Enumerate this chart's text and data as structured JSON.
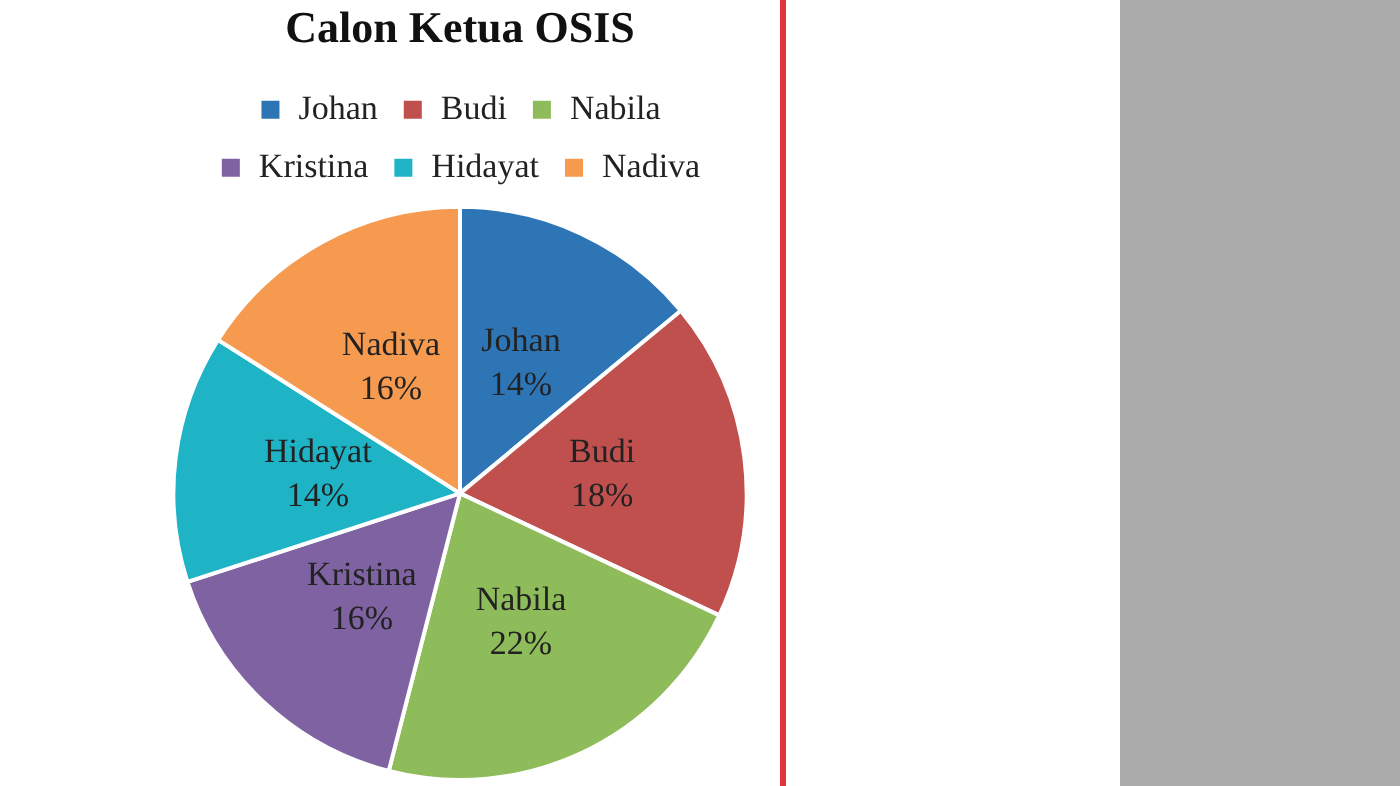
{
  "chart_data": {
    "type": "pie",
    "title": "Calon Ketua OSIS",
    "categories": [
      "Johan",
      "Budi",
      "Nabila",
      "Kristina",
      "Hidayat",
      "Nadiva"
    ],
    "values": [
      14,
      18,
      22,
      16,
      14,
      16
    ],
    "value_labels": [
      "14%",
      "18%",
      "22%",
      "16%",
      "14%",
      "16%"
    ],
    "colors": [
      "#2e75b6",
      "#c0504d",
      "#8fbc5a",
      "#7f62a1",
      "#1fb3c6",
      "#f59a4f"
    ],
    "legend": "top"
  }
}
